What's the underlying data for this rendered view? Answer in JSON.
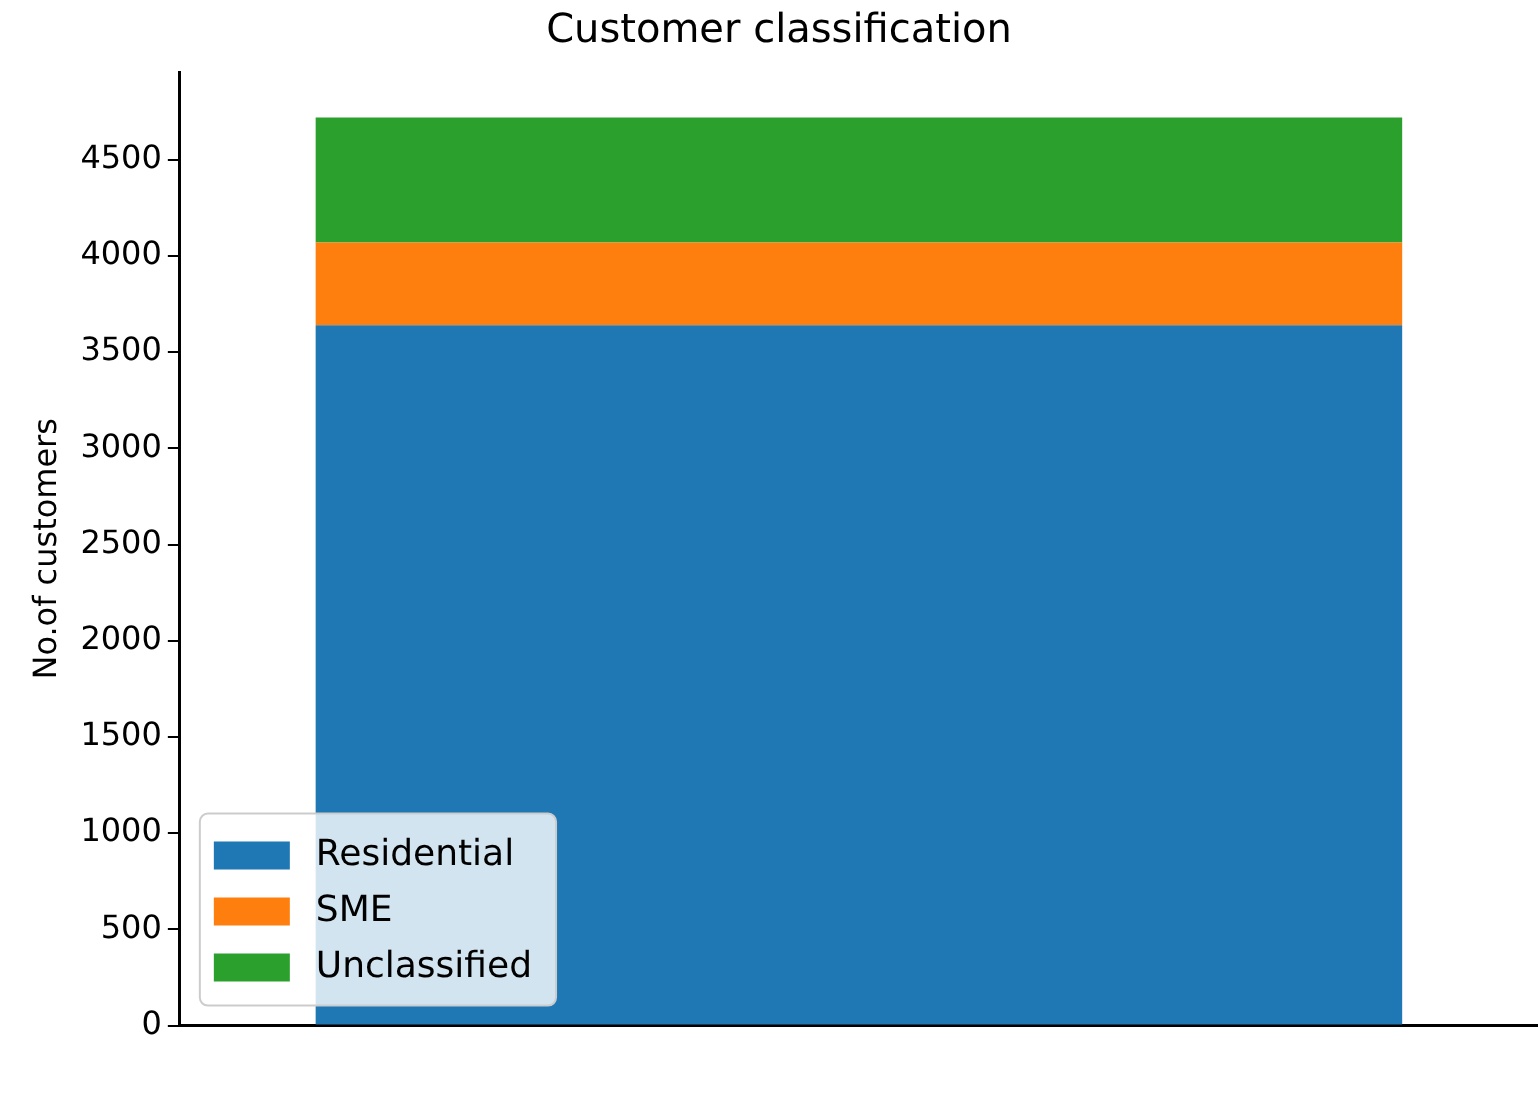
{
  "chart_data": {
    "type": "bar",
    "title": "Customer classification",
    "ylabel": "No.of customers",
    "categories": [
      null
    ],
    "stacked": true,
    "series": [
      {
        "name": "Residential",
        "color": "#1f77b4",
        "values": [
          3640
        ]
      },
      {
        "name": "SME",
        "color": "#ff7f0e",
        "values": [
          430
        ]
      },
      {
        "name": "Unclassified",
        "color": "#2ca02c",
        "values": [
          650
        ]
      }
    ],
    "ylim": [
      0,
      4956
    ],
    "yticks": [
      0,
      500,
      1000,
      1500,
      2000,
      2500,
      3000,
      3500,
      4000,
      4500
    ],
    "legend": "bottom left",
    "grid": false
  }
}
